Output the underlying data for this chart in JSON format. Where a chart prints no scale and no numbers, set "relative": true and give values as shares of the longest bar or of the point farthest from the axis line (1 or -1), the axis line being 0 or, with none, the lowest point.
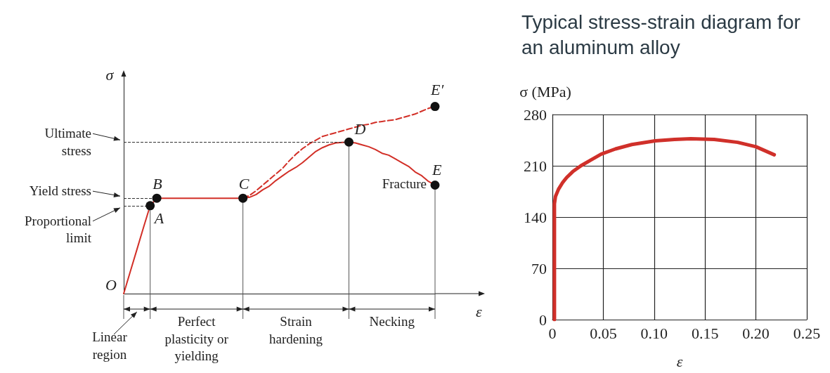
{
  "chart_data": [
    {
      "type": "line",
      "relative": true,
      "xlabel": "ε",
      "ylabel": "σ",
      "marker": "none",
      "categories": [
        null,
        null,
        null,
        null,
        null,
        null,
        null,
        null,
        null,
        null,
        null,
        null,
        null,
        null,
        null,
        null,
        null,
        null,
        null,
        null,
        null,
        null,
        null,
        null,
        null,
        null,
        null,
        null,
        null,
        null,
        null,
        null,
        null,
        null,
        null,
        null,
        null,
        null,
        null,
        null,
        null,
        null,
        null,
        null,
        null,
        null,
        null,
        null
      ],
      "series": [
        {
          "color": "#d22f27",
          "values": [
            0,
            0.118,
            0.236,
            0.355,
            0.47,
            0.51,
            0.51,
            0.51,
            0.51,
            0.51,
            0.51,
            0.51,
            0.51,
            0.51,
            0.51,
            0.51,
            0.51,
            0.51,
            0.51,
            0.515,
            0.53,
            0.555,
            0.575,
            0.605,
            0.63,
            0.655,
            0.675,
            0.7,
            0.73,
            0.76,
            0.78,
            0.795,
            0.805,
            0.808,
            0.81,
            0.805,
            0.795,
            0.785,
            0.77,
            0.75,
            0.74,
            0.72,
            0.7,
            0.68,
            0.65,
            0.63,
            0.6,
            0.58
          ]
        },
        {
          "color": "#d22f27",
          "line_style": "dashed",
          "values": [
            null,
            null,
            null,
            null,
            null,
            null,
            null,
            null,
            null,
            null,
            null,
            null,
            null,
            null,
            null,
            null,
            null,
            null,
            0.51,
            0.525,
            0.55,
            0.58,
            0.61,
            0.64,
            0.67,
            0.71,
            0.745,
            0.775,
            0.8,
            0.82,
            0.84,
            0.85,
            0.86,
            0.87,
            0.88,
            0.89,
            0.9,
            0.905,
            0.915,
            0.92,
            0.925,
            0.93,
            0.94,
            0.95,
            0.96,
            0.975,
            0.99,
            1
          ]
        }
      ],
      "ref_lines": [
        {
          "axis": "y",
          "value": 0.81,
          "label": "Ultimate stress",
          "line_style": "dashed",
          "color": "#333333"
        },
        {
          "axis": "y",
          "value": 0.51,
          "label": "Yield stress",
          "line_style": "dashed",
          "color": "#333333"
        },
        {
          "axis": "y",
          "value": 0.47,
          "label": "Proportional limit",
          "line_style": "dashed",
          "color": "#333333"
        }
      ],
      "annotations": [
        {
          "text": "A",
          "y": 0.47
        },
        {
          "text": "B",
          "y": 0.51
        },
        {
          "text": "C",
          "y": 0.51
        },
        {
          "text": "D",
          "y": 0.81
        },
        {
          "text": "E",
          "y": 0.58
        },
        {
          "text": "E′",
          "y": 1
        },
        "O",
        "Fracture",
        "Linear region",
        "Perfect plasticity or yielding",
        "Strain hardening",
        "Necking"
      ]
    },
    {
      "type": "line",
      "title": "Typical stress-strain diagram for an aluminum alloy",
      "xlabel": "ε",
      "ylabel": "σ (MPa)",
      "color": "#d0302a",
      "x": [
        0.002,
        0.002,
        0.002,
        0.003,
        0.006,
        0.01,
        0.014,
        0.02,
        0.028,
        0.038,
        0.048,
        0.062,
        0.078,
        0.101,
        0.12,
        0.136,
        0.159,
        0.182,
        0.2,
        0.218
      ],
      "values": [
        0,
        126,
        158,
        168,
        178,
        187,
        194,
        202,
        210,
        218,
        226,
        233,
        239,
        244,
        246,
        247,
        246,
        242,
        236,
        225
      ],
      "xlim": [
        0,
        0.25
      ],
      "ylim": [
        0,
        280
      ],
      "xticks": [
        0,
        0.05,
        {
          "value": 0.1,
          "label": "0.10"
        },
        0.15,
        {
          "value": 0.2,
          "label": "0.20"
        },
        0.25
      ],
      "yticks": [
        0,
        70,
        140,
        210,
        280
      ],
      "grid": true
    }
  ]
}
